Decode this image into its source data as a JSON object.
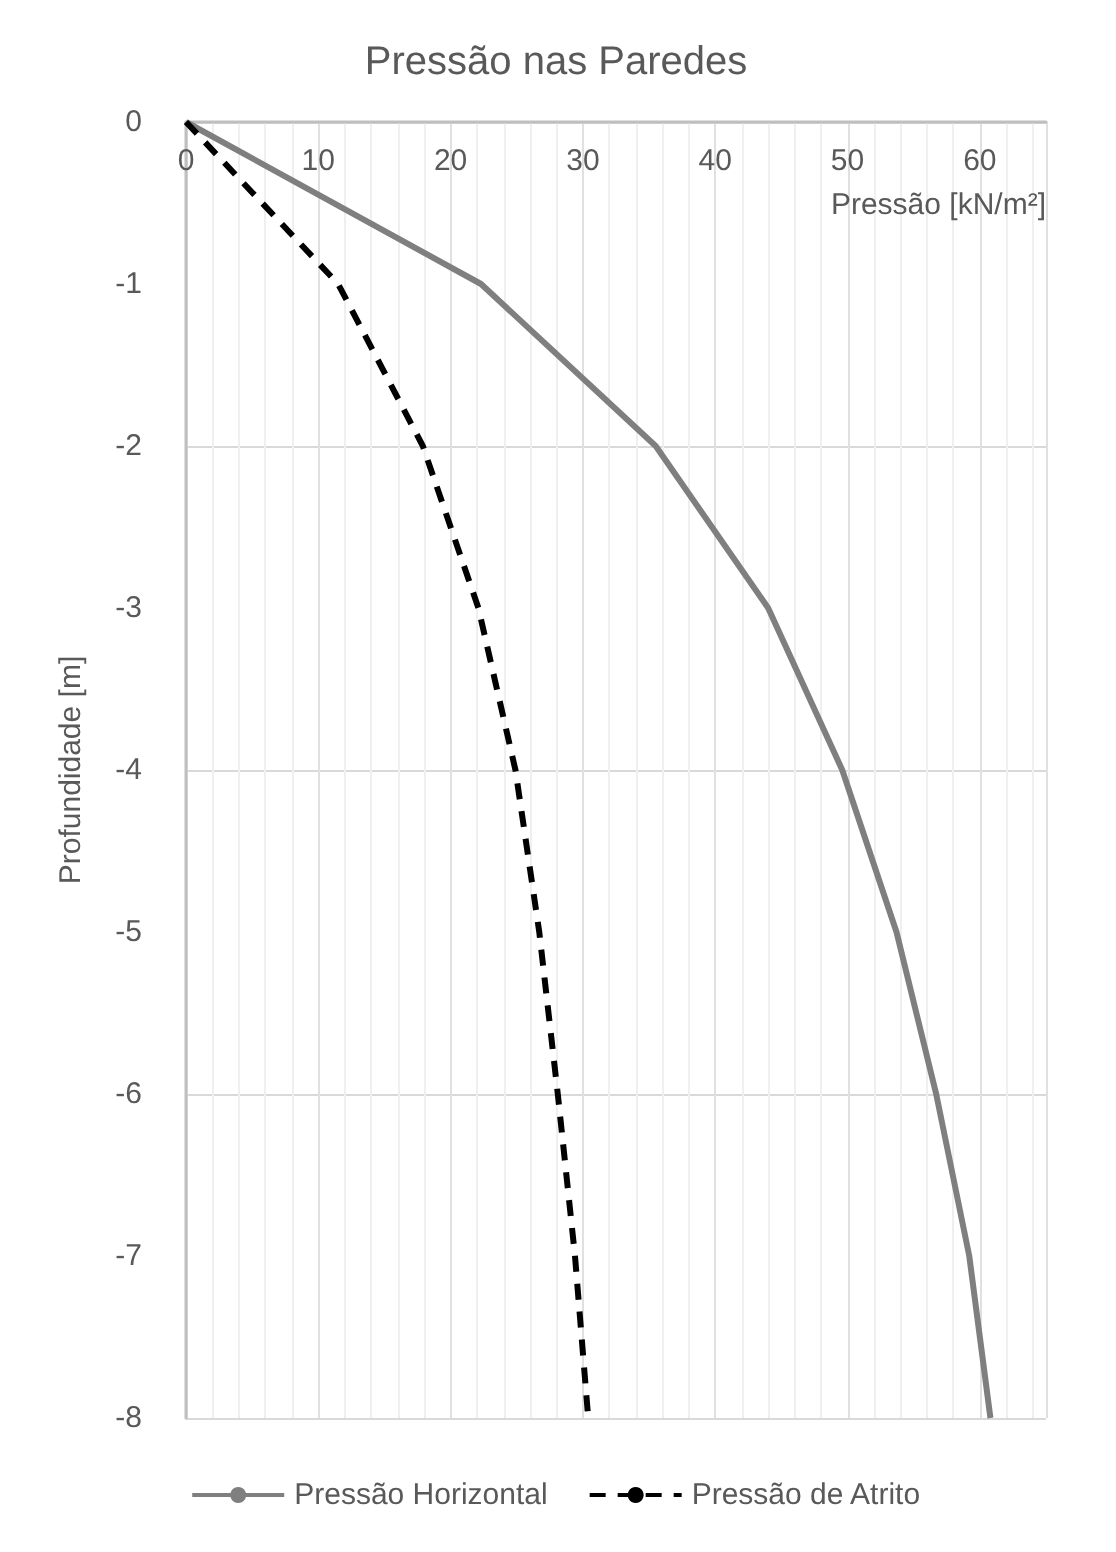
{
  "chart_data": {
    "type": "line",
    "title": "Pressão nas Paredes",
    "xlabel": "Pressão [kN/m²]",
    "ylabel": "Profundidade [m]",
    "xlim": [
      0,
      65
    ],
    "xticks": [
      0,
      10,
      20,
      30,
      40,
      50,
      60
    ],
    "ylim": [
      -8,
      0
    ],
    "yticks": [
      -8,
      -7,
      -6,
      -5,
      -4,
      -3,
      -2,
      -1,
      0
    ],
    "grid": true,
    "legend": "bottom",
    "marker": "none",
    "series": [
      {
        "name": "Pressão Horizontal",
        "color": "#7f7f7f",
        "line_style": "solid",
        "x": [
          0,
          22.3,
          35.5,
          44.0,
          49.6,
          53.7,
          56.7,
          59.2,
          60.8
        ],
        "values": [
          0,
          -1,
          -2,
          -3,
          -4,
          -5,
          -6,
          -7,
          -8
        ]
      },
      {
        "name": "Pressão de Atrito",
        "color": "#000000",
        "line_style": "dashed",
        "x": [
          0,
          11.5,
          17.9,
          22.1,
          24.9,
          26.7,
          28.1,
          29.4,
          30.4
        ],
        "values": [
          0,
          -1,
          -2,
          -3,
          -4,
          -5,
          -6,
          -7,
          -8
        ]
      }
    ]
  }
}
